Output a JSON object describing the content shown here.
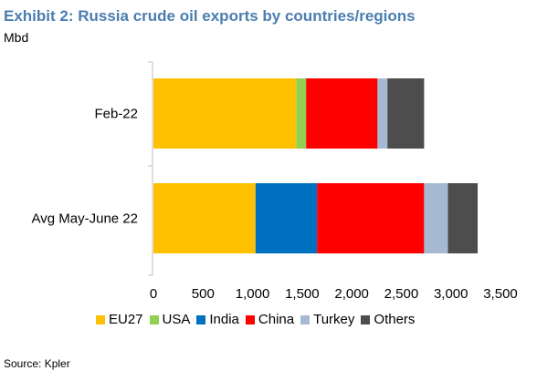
{
  "chart_data": {
    "type": "bar",
    "orientation": "horizontal",
    "stacked": true,
    "title": "Exhibit 2: Russia crude oil exports by countries/regions",
    "unit": "Mbd",
    "categories": [
      "Feb-22",
      "Avg May-June 22"
    ],
    "series": [
      {
        "name": "EU27",
        "color": "#ffc000",
        "values": [
          1440,
          1030
        ]
      },
      {
        "name": "USA",
        "color": "#92d050",
        "values": [
          100,
          0
        ]
      },
      {
        "name": "India",
        "color": "#0070c0",
        "values": [
          0,
          620
        ]
      },
      {
        "name": "China",
        "color": "#ff0000",
        "values": [
          720,
          1080
        ]
      },
      {
        "name": "Turkey",
        "color": "#a6b9d3",
        "values": [
          100,
          240
        ]
      },
      {
        "name": "Others",
        "color": "#4d4d4d",
        "values": [
          370,
          300
        ]
      }
    ],
    "xlim": [
      0,
      3500
    ],
    "xticks": [
      "0",
      "500",
      "1,000",
      "1,500",
      "2,000",
      "2,500",
      "3,000",
      "3,500"
    ],
    "grid": false,
    "legend_position": "bottom",
    "source": "Source: Kpler"
  }
}
